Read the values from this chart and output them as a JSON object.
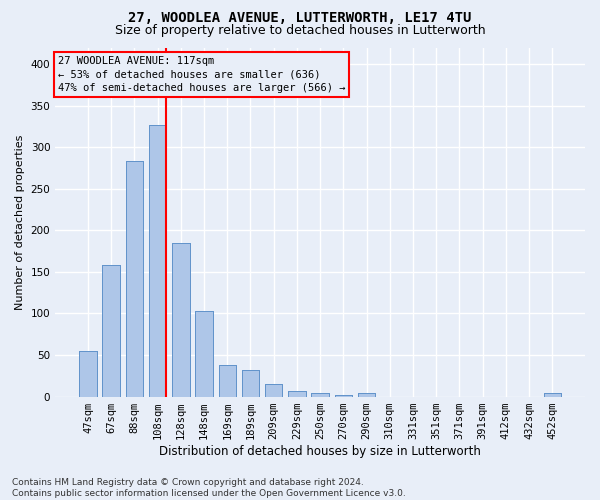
{
  "title": "27, WOODLEA AVENUE, LUTTERWORTH, LE17 4TU",
  "subtitle": "Size of property relative to detached houses in Lutterworth",
  "xlabel": "Distribution of detached houses by size in Lutterworth",
  "ylabel": "Number of detached properties",
  "categories": [
    "47sqm",
    "67sqm",
    "88sqm",
    "108sqm",
    "128sqm",
    "148sqm",
    "169sqm",
    "189sqm",
    "209sqm",
    "229sqm",
    "250sqm",
    "270sqm",
    "290sqm",
    "310sqm",
    "331sqm",
    "351sqm",
    "371sqm",
    "391sqm",
    "412sqm",
    "432sqm",
    "452sqm"
  ],
  "values": [
    55,
    158,
    283,
    327,
    185,
    103,
    38,
    32,
    15,
    7,
    4,
    2,
    4,
    0,
    0,
    0,
    0,
    0,
    0,
    0,
    4
  ],
  "bar_color": "#aec6e8",
  "bar_edge_color": "#5b8fc9",
  "highlight_line_index": 3,
  "annotation_line1": "27 WOODLEA AVENUE: 117sqm",
  "annotation_line2": "← 53% of detached houses are smaller (636)",
  "annotation_line3": "47% of semi-detached houses are larger (566) →",
  "ylim": [
    0,
    420
  ],
  "yticks": [
    0,
    50,
    100,
    150,
    200,
    250,
    300,
    350,
    400
  ],
  "footer_line1": "Contains HM Land Registry data © Crown copyright and database right 2024.",
  "footer_line2": "Contains public sector information licensed under the Open Government Licence v3.0.",
  "background_color": "#e8eef8",
  "grid_color": "#ffffff",
  "title_fontsize": 10,
  "subtitle_fontsize": 9,
  "ylabel_fontsize": 8,
  "xlabel_fontsize": 8.5,
  "tick_fontsize": 7.5,
  "annotation_fontsize": 7.5,
  "footer_fontsize": 6.5
}
